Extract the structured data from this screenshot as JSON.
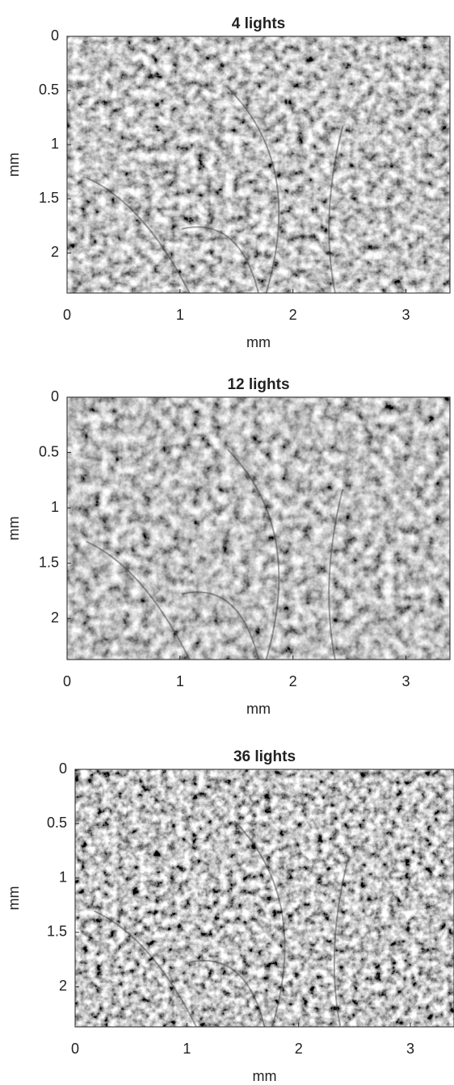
{
  "chart_data": [
    {
      "type": "image",
      "title": "4 lights",
      "xlabel": "mm",
      "ylabel": "mm",
      "xlim": [
        0,
        3.39
      ],
      "ylim": [
        0,
        2.37
      ],
      "y_reversed": true,
      "xticks": [
        0,
        1,
        2,
        3
      ],
      "yticks": [
        0,
        0.5,
        1,
        1.5,
        2
      ]
    },
    {
      "type": "image",
      "title": "12 lights",
      "xlabel": "mm",
      "ylabel": "mm",
      "xlim": [
        0,
        3.39
      ],
      "ylim": [
        0,
        2.37
      ],
      "y_reversed": true,
      "xticks": [
        0,
        1,
        2,
        3
      ],
      "yticks": [
        0,
        0.5,
        1,
        1.5,
        2
      ]
    },
    {
      "type": "image",
      "title": "36 lights",
      "xlabel": "mm",
      "ylabel": "mm",
      "xlim": [
        0,
        3.39
      ],
      "ylim": [
        0,
        2.37
      ],
      "y_reversed": true,
      "xticks": [
        0,
        1,
        2,
        3
      ],
      "yticks": [
        0,
        0.5,
        1,
        1.5,
        2
      ]
    }
  ]
}
